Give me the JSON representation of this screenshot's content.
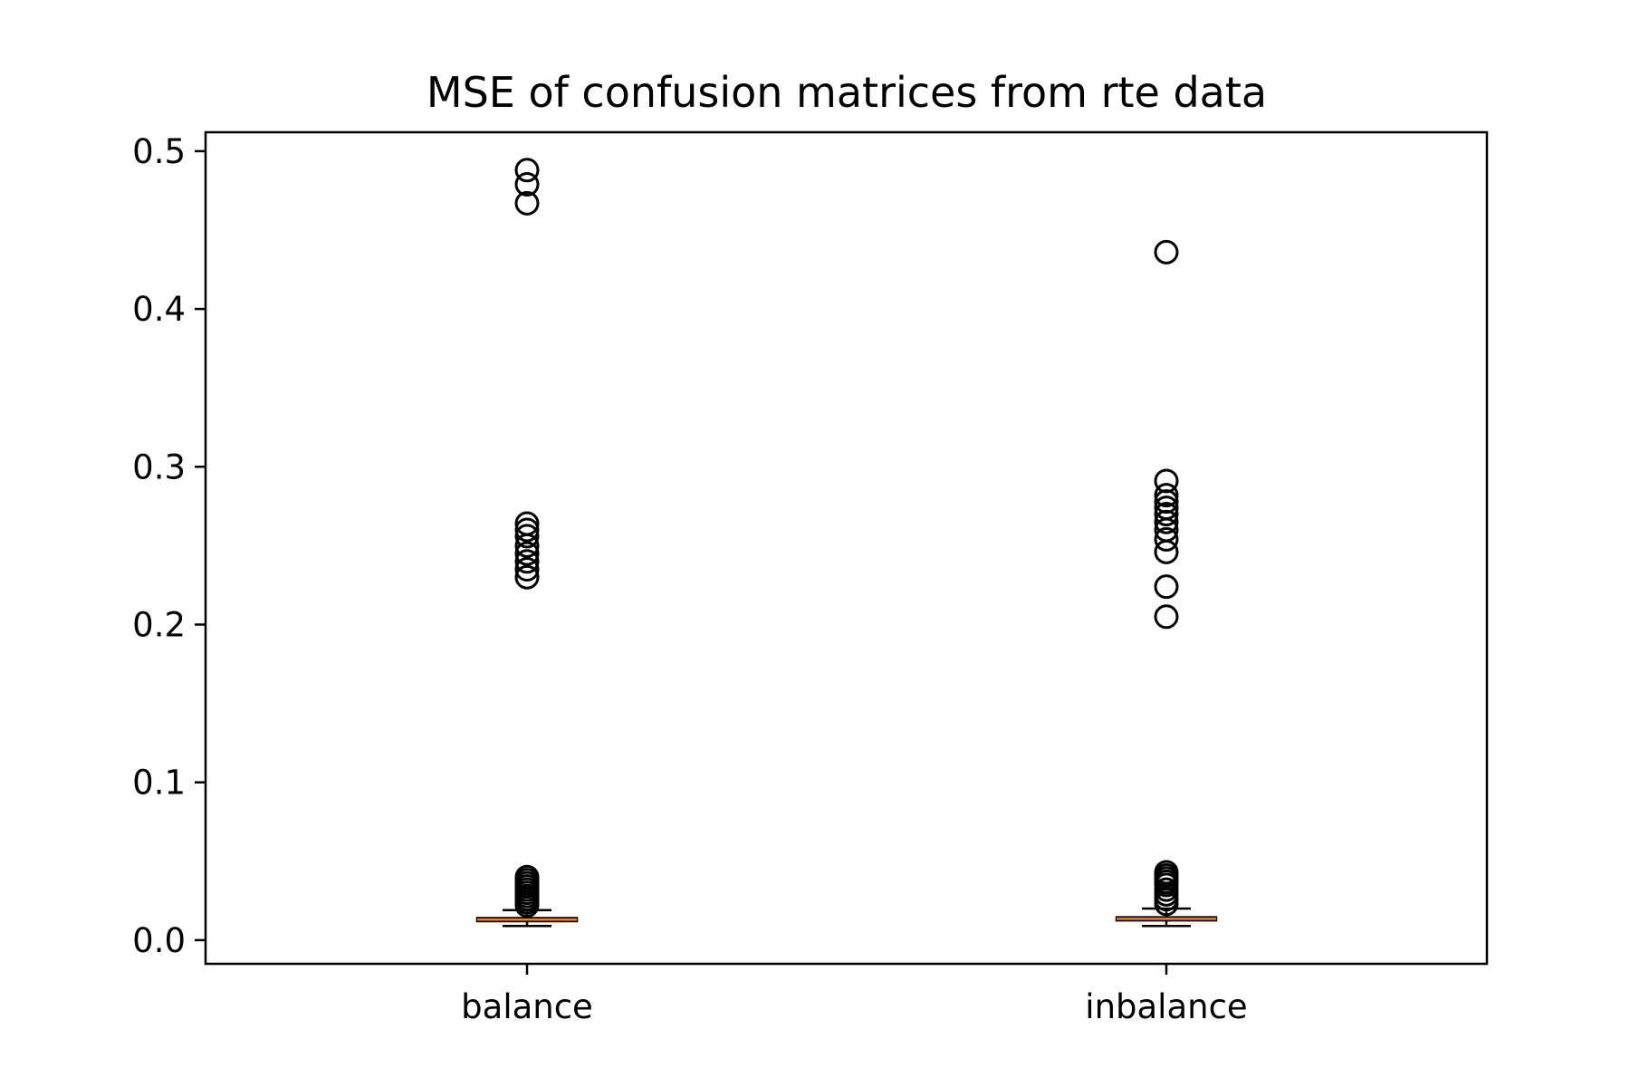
{
  "chart_data": {
    "type": "box",
    "title": "MSE of confusion matrices from rte data",
    "xlabel": "",
    "ylabel": "",
    "ylim": [
      -0.015,
      0.512
    ],
    "yticks": [
      0.0,
      0.1,
      0.2,
      0.3,
      0.4,
      0.5
    ],
    "ytick_labels": [
      "0.0",
      "0.1",
      "0.2",
      "0.3",
      "0.4",
      "0.5"
    ],
    "grid": false,
    "median_color": "#ff7f0e",
    "categories": [
      "balance",
      "inbalance"
    ],
    "boxes": [
      {
        "name": "balance",
        "whisker_low": 0.009,
        "q1": 0.012,
        "median": 0.013,
        "q3": 0.014,
        "whisker_high": 0.019,
        "outliers": [
          0.488,
          0.479,
          0.467,
          0.264,
          0.26,
          0.256,
          0.25,
          0.245,
          0.24,
          0.235,
          0.23,
          0.04,
          0.038,
          0.036,
          0.034,
          0.032,
          0.03,
          0.028,
          0.026,
          0.024,
          0.022
        ]
      },
      {
        "name": "inbalance",
        "whisker_low": 0.009,
        "q1": 0.0125,
        "median": 0.0135,
        "q3": 0.0145,
        "whisker_high": 0.02,
        "outliers": [
          0.436,
          0.291,
          0.282,
          0.278,
          0.274,
          0.27,
          0.265,
          0.26,
          0.254,
          0.246,
          0.224,
          0.205,
          0.043,
          0.041,
          0.039,
          0.037,
          0.035,
          0.032,
          0.029,
          0.026,
          0.023
        ]
      }
    ]
  }
}
